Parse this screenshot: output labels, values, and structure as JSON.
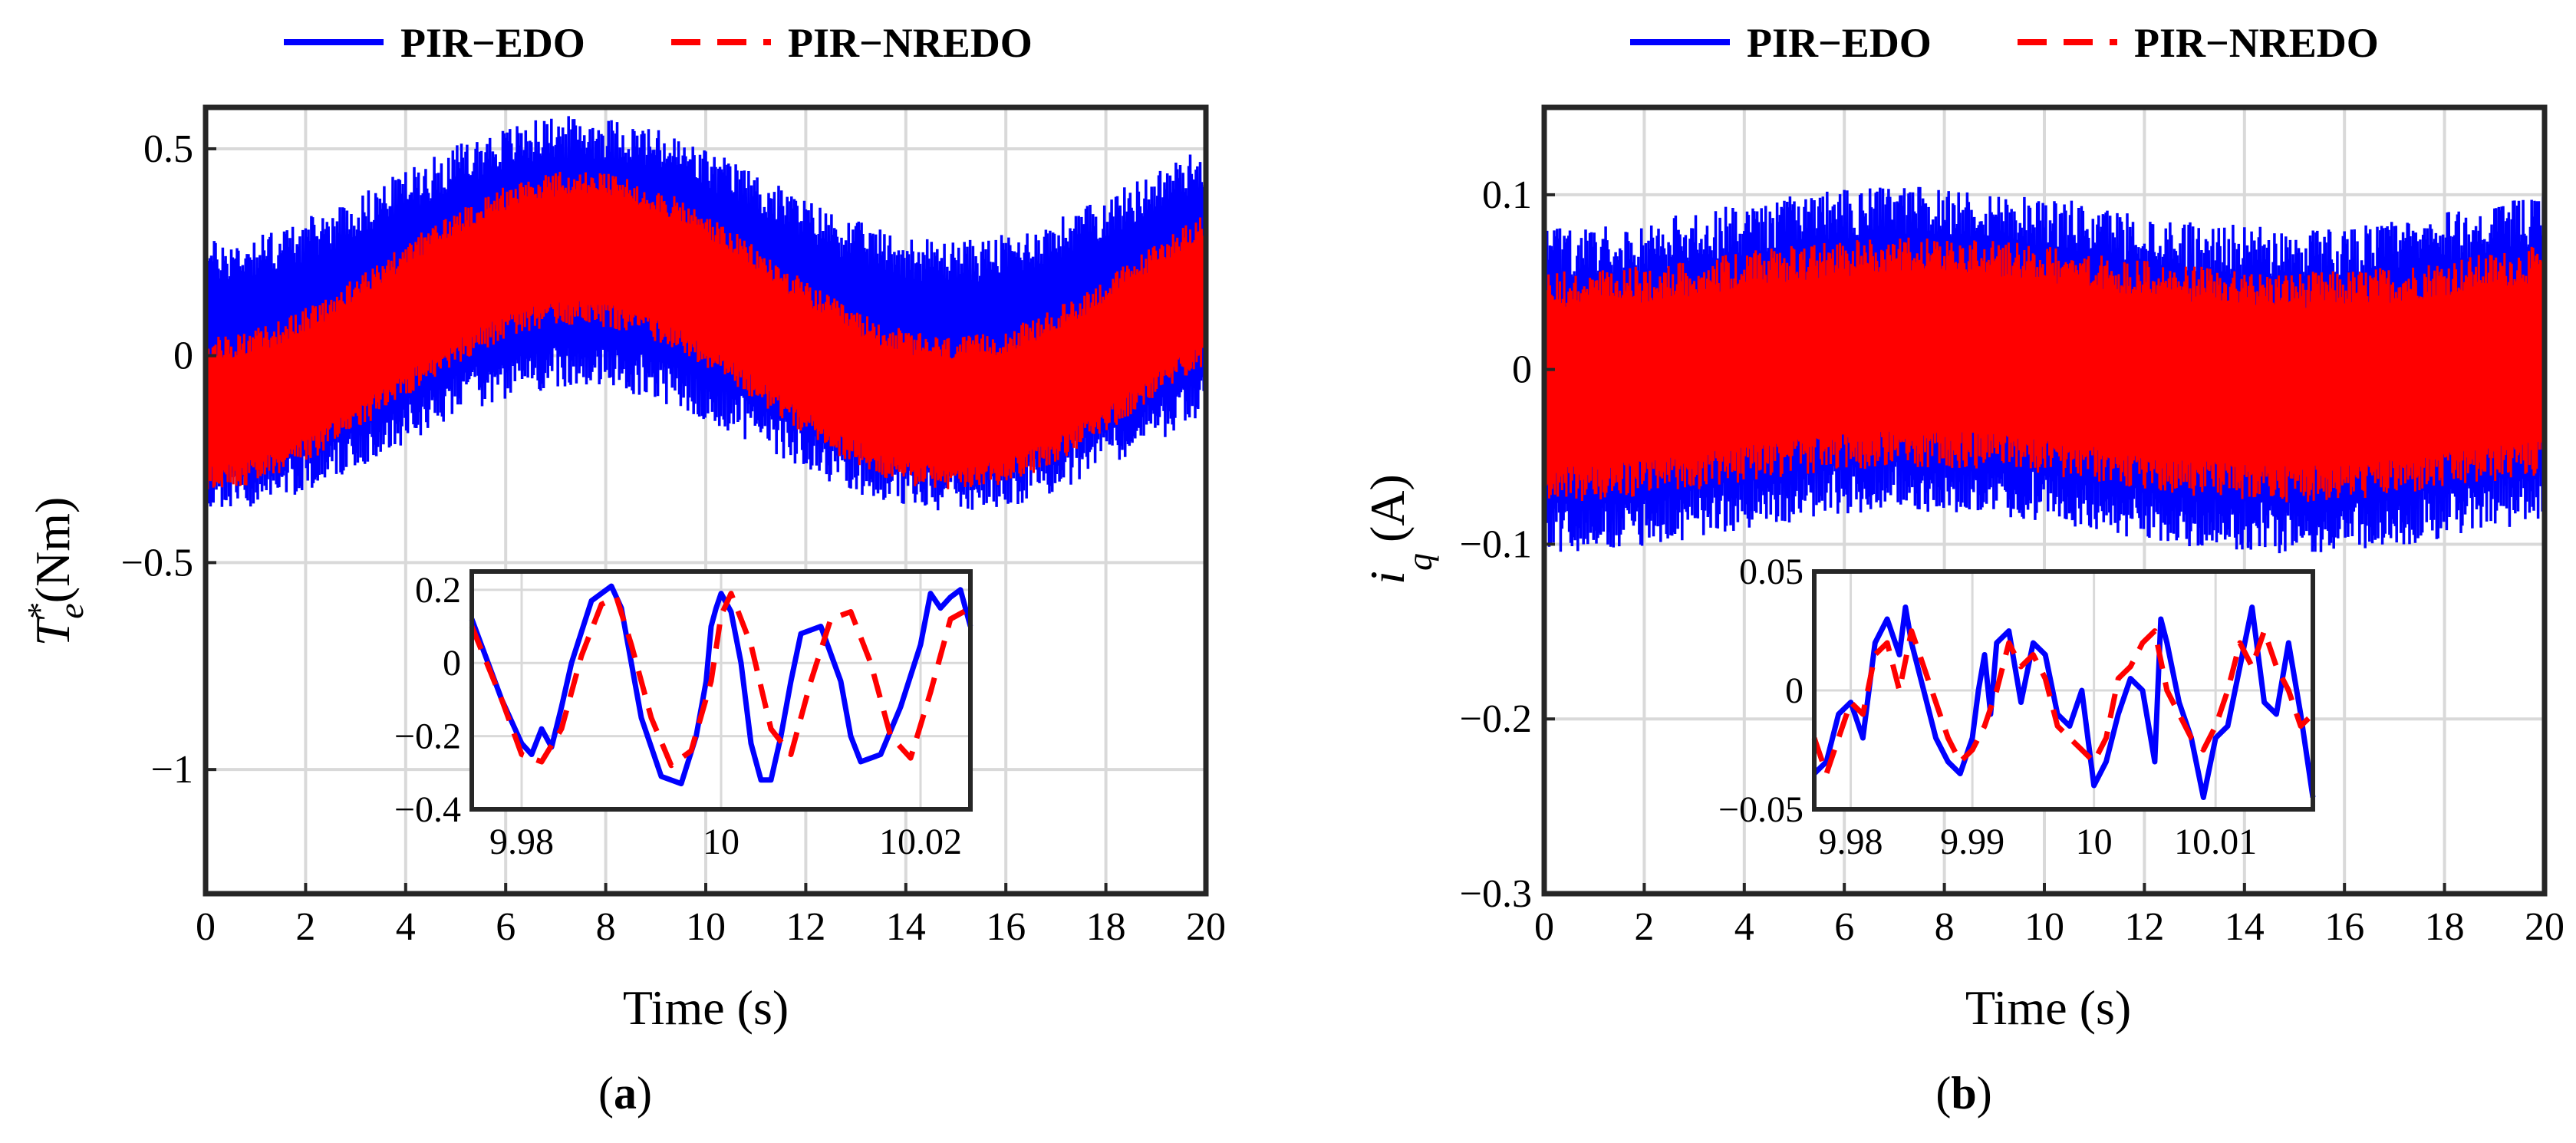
{
  "colors": {
    "edo": "#0000ff",
    "nredo": "#ff0000",
    "grid": "#d9d9d9",
    "axis": "#262626"
  },
  "chart_data": [
    {
      "type": "line",
      "panel_label": "(a)",
      "panel_letter": "a",
      "xlabel": "Time (s)",
      "ylabel": "T*e (Nm)",
      "ylabel_main": "T",
      "ylabel_sup": "*",
      "ylabel_sub": "e",
      "ylabel_unit": "(Nm)",
      "xlim": [
        0,
        20
      ],
      "ylim": [
        -1.3,
        0.6
      ],
      "xticks": [
        0,
        2,
        4,
        6,
        8,
        10,
        12,
        14,
        16,
        18,
        20
      ],
      "xtick_labels": [
        "0",
        "2",
        "4",
        "6",
        "8",
        "10",
        "12",
        "14",
        "16",
        "18",
        "20"
      ],
      "yticks": [
        -1,
        -0.5,
        0,
        0.5
      ],
      "ytick_labels": [
        "−1",
        "−0.5",
        "0",
        "0.5"
      ],
      "legend": {
        "position": "top",
        "entries": [
          "PIR−EDO",
          "PIR−NREDO"
        ]
      },
      "series": [
        {
          "name": "PIR−EDO",
          "style": "solid",
          "center": 0.1,
          "amplitude": 0.15,
          "period_s": 15,
          "phase_s": 3.7,
          "band_half_width": 0.3
        },
        {
          "name": "PIR−NREDO",
          "style": "dashed",
          "center": 0.06,
          "amplitude": 0.2,
          "period_s": 15,
          "phase_s": 3.7,
          "band_half_width": 0.17
        }
      ],
      "inset": {
        "xlim": [
          9.975,
          10.025
        ],
        "ylim": [
          -0.4,
          0.25
        ],
        "xticks": [
          9.98,
          10,
          10.02
        ],
        "xtick_labels": [
          "9.98",
          "10",
          "10.02"
        ],
        "yticks": [
          -0.4,
          -0.2,
          0,
          0.2
        ],
        "ytick_labels": [
          "−0.4",
          "−0.2",
          "0",
          "0.2"
        ],
        "series": [
          {
            "name": "PIR−EDO",
            "x": [
              9.975,
              9.978,
              9.98,
              9.981,
              9.982,
              9.983,
              9.984,
              9.985,
              9.987,
              9.989,
              9.99,
              9.991,
              9.992,
              9.994,
              9.996,
              9.9975,
              9.9985,
              9.999,
              9.9995,
              10,
              10.001,
              10.002,
              10.003,
              10.004,
              10.005,
              10.006,
              10.007,
              10.008,
              10.01,
              10.012,
              10.013,
              10.014,
              10.016,
              10.018,
              10.02,
              10.021,
              10.022,
              10.023,
              10.024,
              10.025
            ],
            "y": [
              0.12,
              -0.1,
              -0.22,
              -0.25,
              -0.18,
              -0.23,
              -0.12,
              0.0,
              0.17,
              0.21,
              0.15,
              0.0,
              -0.15,
              -0.31,
              -0.33,
              -0.2,
              -0.05,
              0.1,
              0.15,
              0.19,
              0.14,
              0.0,
              -0.22,
              -0.32,
              -0.32,
              -0.2,
              -0.05,
              0.08,
              0.1,
              -0.05,
              -0.2,
              -0.27,
              -0.25,
              -0.12,
              0.05,
              0.19,
              0.15,
              0.18,
              0.2,
              0.1
            ]
          },
          {
            "name": "PIR−NREDO",
            "x": [
              9.975,
              9.978,
              9.98,
              9.982,
              9.984,
              9.986,
              9.988,
              9.9895,
              9.991,
              9.993,
              9.995,
              9.997,
              9.999,
              10.0,
              10.001,
              10.003,
              10.005,
              10.007,
              10.009,
              10.011,
              10.013,
              10.015,
              10.017,
              10.019,
              10.021,
              10.023,
              10.025
            ],
            "y": [
              0.1,
              -0.1,
              -0.25,
              -0.27,
              -0.18,
              0.02,
              0.16,
              0.18,
              0.05,
              -0.15,
              -0.28,
              -0.24,
              -0.05,
              0.13,
              0.19,
              0.05,
              -0.18,
              -0.25,
              -0.05,
              0.12,
              0.14,
              0.0,
              -0.2,
              -0.26,
              -0.08,
              0.12,
              0.15
            ]
          }
        ]
      }
    },
    {
      "type": "line",
      "panel_label": "(b)",
      "panel_letter": "b",
      "xlabel": "Time (s)",
      "ylabel": "iq (A)",
      "ylabel_main": "i",
      "ylabel_sub": "q",
      "ylabel_unit": "(A)",
      "xlim": [
        0,
        20
      ],
      "ylim": [
        -0.3,
        0.15
      ],
      "xticks": [
        0,
        2,
        4,
        6,
        8,
        10,
        12,
        14,
        16,
        18,
        20
      ],
      "xtick_labels": [
        "0",
        "2",
        "4",
        "6",
        "8",
        "10",
        "12",
        "14",
        "16",
        "18",
        "20"
      ],
      "yticks": [
        -0.3,
        -0.2,
        -0.1,
        0,
        0.1
      ],
      "ytick_labels": [
        "−0.3",
        "−0.2",
        "−0.1",
        "0",
        "0.1"
      ],
      "legend": {
        "position": "top",
        "entries": [
          "PIR−EDO",
          "PIR−NREDO"
        ]
      },
      "series": [
        {
          "name": "PIR−EDO",
          "style": "solid",
          "center": 0.0,
          "amplitude": 0.012,
          "period_s": 15,
          "phase_s": 3.7,
          "band_half_width": 0.085
        },
        {
          "name": "PIR−NREDO",
          "style": "dashed",
          "center": 0.0,
          "amplitude": 0.01,
          "period_s": 15,
          "phase_s": 3.7,
          "band_half_width": 0.06
        }
      ],
      "inset": {
        "xlim": [
          9.977,
          10.018
        ],
        "ylim": [
          -0.05,
          0.05
        ],
        "xticks": [
          9.98,
          9.99,
          10,
          10.01
        ],
        "xtick_labels": [
          "9.98",
          "9.99",
          "10",
          "10.01"
        ],
        "yticks": [
          -0.05,
          0,
          0.05
        ],
        "ytick_labels": [
          "−0.05",
          "0",
          "0.05"
        ],
        "series": [
          {
            "name": "PIR−EDO",
            "x": [
              9.977,
              9.978,
              9.979,
              9.98,
              9.981,
              9.9815,
              9.982,
              9.983,
              9.984,
              9.9845,
              9.985,
              9.986,
              9.987,
              9.988,
              9.989,
              9.99,
              9.9905,
              9.991,
              9.9915,
              9.992,
              9.993,
              9.994,
              9.995,
              9.996,
              9.997,
              9.998,
              9.999,
              9.9995,
              10,
              10.001,
              10.002,
              10.003,
              10.004,
              10.005,
              10.0055,
              10.006,
              10.007,
              10.008,
              10.009,
              10.01,
              10.011,
              10.012,
              10.013,
              10.014,
              10.015,
              10.016,
              10.017,
              10.018
            ],
            "y": [
              -0.035,
              -0.03,
              -0.01,
              -0.005,
              -0.02,
              0.0,
              0.02,
              0.03,
              0.015,
              0.035,
              0.02,
              0.0,
              -0.02,
              -0.03,
              -0.035,
              -0.02,
              0.0,
              0.015,
              -0.01,
              0.02,
              0.025,
              -0.005,
              0.02,
              0.015,
              -0.01,
              -0.015,
              0.0,
              -0.02,
              -0.04,
              -0.03,
              -0.01,
              0.005,
              0.0,
              -0.03,
              0.03,
              0.02,
              -0.005,
              -0.02,
              -0.045,
              -0.02,
              -0.015,
              0.01,
              0.035,
              -0.005,
              -0.01,
              0.02,
              -0.01,
              -0.045
            ]
          },
          {
            "name": "PIR−NREDO",
            "x": [
              9.977,
              9.978,
              9.979,
              9.98,
              9.981,
              9.982,
              9.983,
              9.984,
              9.985,
              9.986,
              9.987,
              9.988,
              9.989,
              9.99,
              9.991,
              9.992,
              9.993,
              9.994,
              9.995,
              9.996,
              9.997,
              9.998,
              9.999,
              10.0,
              10.001,
              10.002,
              10.003,
              10.004,
              10.005,
              10.006,
              10.007,
              10.008,
              10.009,
              10.01,
              10.011,
              10.012,
              10.013,
              10.014,
              10.015,
              10.016,
              10.017,
              10.018
            ],
            "y": [
              -0.02,
              -0.035,
              -0.02,
              -0.005,
              -0.01,
              0.015,
              0.02,
              0.0,
              0.025,
              0.01,
              -0.005,
              -0.02,
              -0.03,
              -0.025,
              -0.015,
              0.0,
              0.02,
              0.01,
              0.015,
              0.005,
              -0.015,
              -0.02,
              -0.025,
              -0.03,
              -0.02,
              0.005,
              0.01,
              0.02,
              0.025,
              0.0,
              -0.01,
              -0.02,
              -0.025,
              -0.015,
              0.0,
              0.02,
              0.01,
              0.025,
              0.01,
              0.0,
              -0.015,
              -0.01
            ]
          }
        ]
      }
    }
  ]
}
